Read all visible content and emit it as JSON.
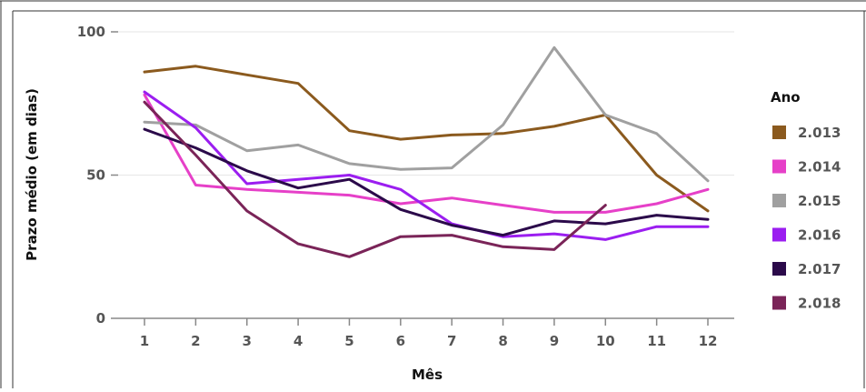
{
  "chart_data": {
    "type": "line",
    "title": "",
    "xlabel": "Mês",
    "ylabel": "Prazo médio (em dias)",
    "x": [
      1,
      2,
      3,
      4,
      5,
      6,
      7,
      8,
      9,
      10,
      11,
      12
    ],
    "x_tick_labels": [
      "1",
      "2",
      "3",
      "4",
      "5",
      "6",
      "7",
      "8",
      "9",
      "10",
      "11",
      "12"
    ],
    "ylim": [
      0,
      100
    ],
    "y_ticks": [
      0,
      50,
      100
    ],
    "y_tick_labels": [
      "0",
      "50",
      "100"
    ],
    "grid": "horizontal",
    "legend": {
      "title": "Ano",
      "placement": "right"
    },
    "series": [
      {
        "name": "2.013",
        "color": "#8b5a1e",
        "values": [
          86,
          88,
          85,
          82,
          65.5,
          62.5,
          64,
          64.5,
          67,
          71,
          50,
          37.5
        ]
      },
      {
        "name": "2.014",
        "color": "#e640c8",
        "values": [
          78,
          46.5,
          45,
          44,
          43,
          40,
          42,
          39.5,
          37,
          37,
          40,
          45
        ]
      },
      {
        "name": "2.015",
        "color": "#a0a0a0",
        "values": [
          68.5,
          67.5,
          58.5,
          60.5,
          54,
          52,
          52.5,
          67.5,
          94.5,
          71,
          64.5,
          48
        ]
      },
      {
        "name": "2.016",
        "color": "#9b1ef0",
        "values": [
          79,
          66.5,
          47,
          48.5,
          50,
          45,
          33,
          28.5,
          29.5,
          27.5,
          32,
          32
        ]
      },
      {
        "name": "2.017",
        "color": "#2b0a4a",
        "values": [
          66,
          59.5,
          51.5,
          45.5,
          48.5,
          38,
          32.5,
          29,
          34,
          33,
          36,
          34.5
        ]
      },
      {
        "name": "2.018",
        "color": "#7a2458",
        "values": [
          75.5,
          57,
          37.5,
          26,
          21.5,
          28.5,
          29,
          25,
          24,
          39.5,
          null,
          null
        ]
      }
    ]
  }
}
